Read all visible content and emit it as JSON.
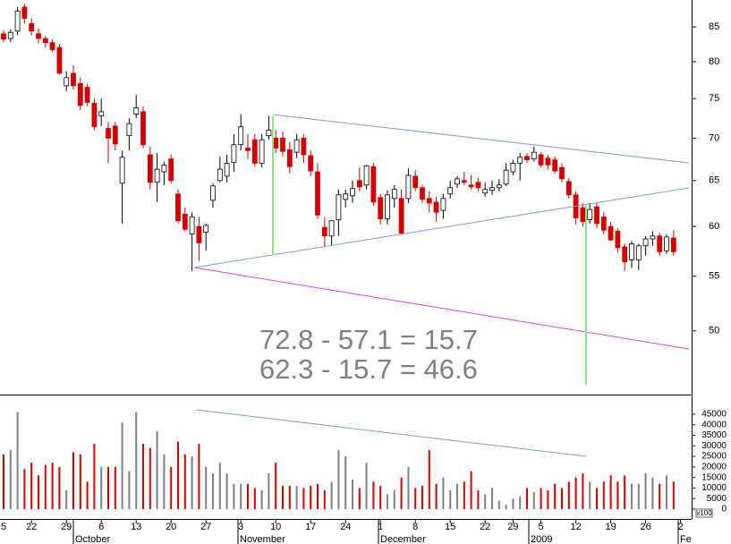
{
  "chart_data": {
    "type": "candlestick",
    "categories": [
      "5",
      null,
      null,
      null,
      null,
      "22",
      null,
      null,
      null,
      null,
      "29",
      null,
      null,
      null,
      null,
      "6",
      null,
      null,
      null,
      null,
      "13",
      null,
      null,
      null,
      null,
      "20",
      null,
      null,
      null,
      null,
      "27",
      null,
      null,
      null,
      null,
      "3",
      null,
      null,
      null,
      null,
      "10",
      null,
      null,
      null,
      null,
      "17",
      null,
      null,
      null,
      null,
      "24",
      null,
      null,
      null,
      null,
      "1",
      null,
      null,
      null,
      null,
      "8",
      null,
      null,
      null,
      null,
      "15",
      null,
      null,
      null,
      null,
      "22",
      null,
      null,
      null,
      "29",
      null,
      null,
      null,
      "5",
      null,
      null,
      null,
      null,
      "12",
      null,
      null,
      null,
      null,
      "19",
      null,
      null,
      null,
      null,
      "26",
      null,
      null,
      null,
      null,
      "2"
    ],
    "open": [
      null,
      84.0,
      83.3,
      84.4,
      88.0,
      85.5,
      84.0,
      83.3,
      82.7,
      82.0,
      76.7,
      78.4,
      77.0,
      76.5,
      74.4,
      72.8,
      71.2,
      71.5,
      64.7,
      70.3,
      73.0,
      73.3,
      68.0,
      64.8,
      66.0,
      67.5,
      63.5,
      61.3,
      59.2,
      60.0,
      59.4,
      62.8,
      65.0,
      65.5,
      67.1,
      69.2,
      68.8,
      69.8,
      67.0,
      70.3,
      70.0,
      70.0,
      68.6,
      68.3,
      70.0,
      67.9,
      66.0,
      59.9,
      59.0,
      60.7,
      62.9,
      63.3,
      65.0,
      64.5,
      66.6,
      63.1,
      60.8,
      63.0,
      63.0,
      63.0,
      65.5,
      64.2,
      63.0,
      62.6,
      61.7,
      63.5,
      64.6,
      65.0,
      64.5,
      64.8,
      63.6,
      63.9,
      64.2,
      64.6,
      66.0,
      67.0,
      67.8,
      67.5,
      68.0,
      67.6,
      67.4,
      66.5,
      64.9,
      63.4,
      62.0,
      60.7,
      62.1,
      61.0,
      60.0,
      59.5,
      57.9,
      56.6,
      56.6,
      58.0,
      58.7,
      59.0,
      57.5,
      58.8,
      null
    ],
    "high": [
      null,
      84.5,
      84.6,
      88.0,
      88.5,
      86.3,
      84.8,
      83.7,
      83.2,
      82.5,
      78.7,
      79.5,
      77.8,
      77.0,
      75.0,
      75.0,
      72.0,
      72.0,
      68.5,
      72.5,
      75.5,
      74.0,
      69.0,
      68.2,
      67.2,
      68.0,
      64.0,
      62.0,
      61.5,
      61.0,
      60.3,
      64.7,
      67.8,
      68.0,
      70.5,
      73.0,
      70.5,
      70.5,
      70.5,
      72.8,
      71.0,
      70.8,
      69.5,
      70.5,
      70.5,
      68.5,
      67.0,
      61.0,
      60.5,
      64.0,
      64.0,
      65.0,
      66.5,
      66.8,
      67.0,
      63.5,
      63.9,
      64.5,
      64.0,
      66.4,
      66.2,
      64.5,
      63.8,
      63.2,
      63.5,
      65.0,
      65.5,
      66.0,
      65.6,
      65.3,
      64.8,
      65.0,
      65.2,
      67.0,
      67.4,
      68.2,
      68.2,
      69.0,
      68.3,
      68.0,
      67.8,
      67.0,
      65.3,
      63.8,
      62.5,
      62.5,
      62.5,
      61.5,
      60.5,
      59.8,
      58.2,
      58.5,
      58.2,
      59.0,
      59.5,
      59.3,
      59.2,
      59.6,
      null
    ],
    "low": [
      null,
      82.8,
      82.8,
      83.8,
      85.5,
      83.8,
      82.6,
      82.0,
      81.4,
      78.2,
      76.0,
      76.2,
      73.5,
      74.0,
      71.0,
      71.5,
      67.0,
      68.5,
      60.3,
      68.5,
      72.5,
      68.8,
      64.0,
      62.6,
      64.5,
      64.7,
      60.3,
      59.5,
      55.5,
      56.5,
      57.5,
      62.0,
      64.8,
      64.8,
      66.0,
      68.5,
      67.5,
      66.6,
      66.5,
      69.8,
      68.2,
      67.8,
      65.8,
      67.6,
      67.0,
      65.5,
      60.8,
      57.9,
      58.0,
      59.0,
      62.0,
      62.5,
      63.8,
      64.0,
      62.2,
      60.2,
      60.2,
      62.0,
      59.1,
      62.5,
      63.8,
      62.5,
      61.5,
      60.5,
      60.8,
      63.0,
      64.2,
      64.5,
      64.0,
      63.8,
      63.2,
      63.4,
      63.8,
      64.4,
      65.6,
      65.0,
      67.0,
      67.2,
      66.5,
      66.3,
      65.8,
      64.8,
      63.0,
      60.2,
      60.0,
      60.3,
      59.8,
      59.2,
      58.5,
      57.3,
      55.5,
      55.8,
      55.6,
      57.0,
      58.0,
      57.0,
      57.2,
      57.0,
      null
    ],
    "close": [
      null,
      83.2,
      84.2,
      87.4,
      86.3,
      84.4,
      83.3,
      82.7,
      81.7,
      78.4,
      77.8,
      76.7,
      74.1,
      74.5,
      71.4,
      73.3,
      70.0,
      69.3,
      67.7,
      71.8,
      73.8,
      69.2,
      64.8,
      66.3,
      66.8,
      65.0,
      60.6,
      59.7,
      61.0,
      58.3,
      60.1,
      64.4,
      66.3,
      67.0,
      69.2,
      71.4,
      68.5,
      67.0,
      69.8,
      71.0,
      68.8,
      68.4,
      66.6,
      69.8,
      68.0,
      66.1,
      61.2,
      59.0,
      60.6,
      63.4,
      63.5,
      64.1,
      64.3,
      66.7,
      62.6,
      60.8,
      63.4,
      64.0,
      59.3,
      65.6,
      64.2,
      62.9,
      62.5,
      61.5,
      63.0,
      64.2,
      65.2,
      64.8,
      64.3,
      64.2,
      64.0,
      64.2,
      64.5,
      66.2,
      67.0,
      67.7,
      67.4,
      68.3,
      66.8,
      66.8,
      66.1,
      65.2,
      63.4,
      60.9,
      60.5,
      61.8,
      60.3,
      59.6,
      58.6,
      57.8,
      56.4,
      58.2,
      58.0,
      58.7,
      59.0,
      57.4,
      58.9,
      57.4,
      null
    ],
    "ylim": [
      44.8,
      89.1
    ],
    "log_scale": true,
    "yticks": [
      50,
      55,
      60,
      65,
      70,
      75,
      80,
      85
    ],
    "up_color": "#ffffff",
    "down_color": "#d40000",
    "annotations": [
      "72.8 - 57.1 = 15.7",
      "62.3 - 15.7 = 46.6"
    ],
    "months": [
      "October",
      "November",
      "December",
      "2009",
      "Fe"
    ],
    "volume": {
      "values": [
        null,
        26000,
        28000,
        46000,
        19000,
        22000,
        16000,
        21000,
        22000,
        20000,
        9000,
        27000,
        26000,
        13000,
        31000,
        20000,
        20000,
        20000,
        41000,
        18000,
        46000,
        31000,
        29000,
        37000,
        26000,
        20000,
        32000,
        26000,
        25000,
        31000,
        20000,
        17000,
        22000,
        17000,
        12000,
        12000,
        12000,
        10000,
        9000,
        17000,
        22000,
        11000,
        11000,
        11000,
        10000,
        11000,
        12000,
        9000,
        13000,
        28000,
        25000,
        14000,
        10000,
        22000,
        13000,
        11000,
        7000,
        9000,
        15000,
        20000,
        10000,
        11000,
        28000,
        12000,
        15000,
        9000,
        12000,
        13000,
        18000,
        9000,
        7000,
        10000,
        4000,
        2000,
        5000,
        6000,
        10000,
        8000,
        10000,
        9000,
        12000,
        10000,
        13000,
        15000,
        17000,
        13000,
        10000,
        13000,
        16000,
        13000,
        16000,
        12000,
        12000,
        17000,
        15000,
        12000,
        16000,
        13000,
        null
      ],
      "ylim": [
        -4670,
        53900
      ],
      "yticks": [
        0,
        5000,
        10000,
        15000,
        20000,
        25000,
        30000,
        35000,
        40000,
        45000
      ],
      "unit": "x100",
      "up_color": "#808080",
      "down_color": "#d40000"
    }
  }
}
